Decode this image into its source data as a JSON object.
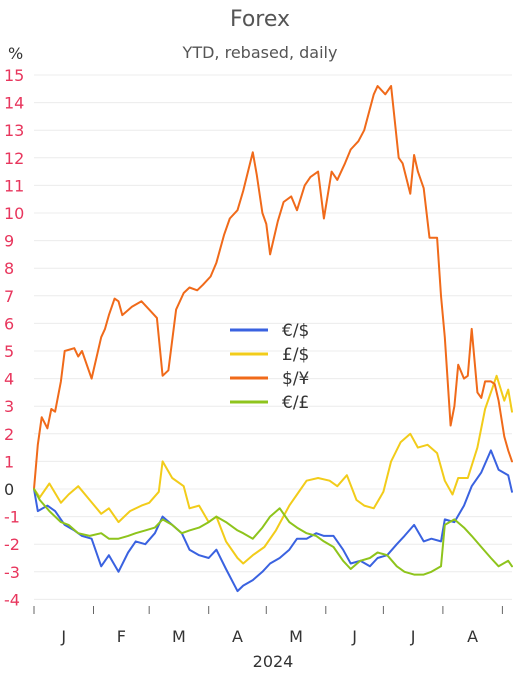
{
  "chart_data": {
    "type": "line",
    "title": "Forex",
    "subtitle": "YTD, rebased, daily",
    "unit_label": "%",
    "xlabel": "2024",
    "x_tick_labels": [
      "J",
      "F",
      "M",
      "A",
      "M",
      "J",
      "J",
      "A"
    ],
    "y_ticks": [
      15,
      14,
      13,
      12,
      11,
      10,
      9,
      8,
      7,
      6,
      5,
      4,
      3,
      2,
      1,
      0,
      -1,
      -2,
      -3,
      -4
    ],
    "ylim": [
      -4.2,
      15.2
    ],
    "xlim": [
      "2024-01-01",
      "2024-09-06"
    ],
    "grid": true,
    "legend_position": "center",
    "colors": {
      "positive_tick": "#e8365d",
      "negative_tick": "#e8365d",
      "zero_tick": "#333333",
      "grid": "#ececec"
    },
    "series": [
      {
        "name": "€/$",
        "color": "#3a62e0",
        "points": [
          [
            "2024-01-01",
            0.0
          ],
          [
            "2024-01-03",
            -0.8
          ],
          [
            "2024-01-08",
            -0.6
          ],
          [
            "2024-01-12",
            -0.8
          ],
          [
            "2024-01-17",
            -1.3
          ],
          [
            "2024-01-22",
            -1.5
          ],
          [
            "2024-01-26",
            -1.7
          ],
          [
            "2024-01-31",
            -1.8
          ],
          [
            "2024-02-05",
            -2.8
          ],
          [
            "2024-02-09",
            -2.4
          ],
          [
            "2024-02-14",
            -3.0
          ],
          [
            "2024-02-19",
            -2.3
          ],
          [
            "2024-02-23",
            -1.9
          ],
          [
            "2024-02-28",
            -2.0
          ],
          [
            "2024-03-04",
            -1.6
          ],
          [
            "2024-03-08",
            -1.0
          ],
          [
            "2024-03-13",
            -1.3
          ],
          [
            "2024-03-18",
            -1.6
          ],
          [
            "2024-03-22",
            -2.2
          ],
          [
            "2024-03-27",
            -2.4
          ],
          [
            "2024-04-01",
            -2.5
          ],
          [
            "2024-04-05",
            -2.2
          ],
          [
            "2024-04-10",
            -2.9
          ],
          [
            "2024-04-16",
            -3.7
          ],
          [
            "2024-04-19",
            -3.5
          ],
          [
            "2024-04-24",
            -3.3
          ],
          [
            "2024-04-29",
            -3.0
          ],
          [
            "2024-05-03",
            -2.7
          ],
          [
            "2024-05-08",
            -2.5
          ],
          [
            "2024-05-13",
            -2.2
          ],
          [
            "2024-05-17",
            -1.8
          ],
          [
            "2024-05-22",
            -1.8
          ],
          [
            "2024-05-27",
            -1.6
          ],
          [
            "2024-05-31",
            -1.7
          ],
          [
            "2024-06-05",
            -1.7
          ],
          [
            "2024-06-10",
            -2.2
          ],
          [
            "2024-06-14",
            -2.7
          ],
          [
            "2024-06-19",
            -2.6
          ],
          [
            "2024-06-24",
            -2.8
          ],
          [
            "2024-06-28",
            -2.5
          ],
          [
            "2024-07-03",
            -2.4
          ],
          [
            "2024-07-08",
            -2.0
          ],
          [
            "2024-07-12",
            -1.7
          ],
          [
            "2024-07-17",
            -1.3
          ],
          [
            "2024-07-22",
            -1.9
          ],
          [
            "2024-07-26",
            -1.8
          ],
          [
            "2024-07-31",
            -1.9
          ],
          [
            "2024-08-02",
            -1.1
          ],
          [
            "2024-08-07",
            -1.2
          ],
          [
            "2024-08-12",
            -0.6
          ],
          [
            "2024-08-16",
            0.1
          ],
          [
            "2024-08-21",
            0.6
          ],
          [
            "2024-08-26",
            1.4
          ],
          [
            "2024-08-30",
            0.7
          ],
          [
            "2024-09-04",
            0.5
          ],
          [
            "2024-09-06",
            -0.1
          ]
        ]
      },
      {
        "name": "£/$",
        "color": "#f2cc1a",
        "points": [
          [
            "2024-01-01",
            0.0
          ],
          [
            "2024-01-04",
            -0.3
          ],
          [
            "2024-01-09",
            0.2
          ],
          [
            "2024-01-15",
            -0.5
          ],
          [
            "2024-01-19",
            -0.2
          ],
          [
            "2024-01-24",
            0.1
          ],
          [
            "2024-01-30",
            -0.4
          ],
          [
            "2024-02-05",
            -0.9
          ],
          [
            "2024-02-09",
            -0.7
          ],
          [
            "2024-02-14",
            -1.2
          ],
          [
            "2024-02-20",
            -0.8
          ],
          [
            "2024-02-26",
            -0.6
          ],
          [
            "2024-03-01",
            -0.5
          ],
          [
            "2024-03-06",
            -0.1
          ],
          [
            "2024-03-08",
            1.0
          ],
          [
            "2024-03-13",
            0.4
          ],
          [
            "2024-03-19",
            0.1
          ],
          [
            "2024-03-22",
            -0.7
          ],
          [
            "2024-03-27",
            -0.6
          ],
          [
            "2024-04-01",
            -1.2
          ],
          [
            "2024-04-05",
            -1.0
          ],
          [
            "2024-04-10",
            -1.9
          ],
          [
            "2024-04-16",
            -2.5
          ],
          [
            "2024-04-19",
            -2.7
          ],
          [
            "2024-04-24",
            -2.4
          ],
          [
            "2024-04-30",
            -2.1
          ],
          [
            "2024-05-06",
            -1.5
          ],
          [
            "2024-05-13",
            -0.6
          ],
          [
            "2024-05-17",
            -0.2
          ],
          [
            "2024-05-22",
            0.3
          ],
          [
            "2024-05-28",
            0.4
          ],
          [
            "2024-06-03",
            0.3
          ],
          [
            "2024-06-07",
            0.1
          ],
          [
            "2024-06-12",
            0.5
          ],
          [
            "2024-06-17",
            -0.4
          ],
          [
            "2024-06-21",
            -0.6
          ],
          [
            "2024-06-26",
            -0.7
          ],
          [
            "2024-07-01",
            -0.1
          ],
          [
            "2024-07-05",
            1.0
          ],
          [
            "2024-07-10",
            1.7
          ],
          [
            "2024-07-15",
            2.0
          ],
          [
            "2024-07-19",
            1.5
          ],
          [
            "2024-07-24",
            1.6
          ],
          [
            "2024-07-29",
            1.3
          ],
          [
            "2024-08-02",
            0.3
          ],
          [
            "2024-08-06",
            -0.2
          ],
          [
            "2024-08-09",
            0.4
          ],
          [
            "2024-08-14",
            0.4
          ],
          [
            "2024-08-19",
            1.5
          ],
          [
            "2024-08-23",
            2.9
          ],
          [
            "2024-08-27",
            3.7
          ],
          [
            "2024-08-29",
            4.1
          ],
          [
            "2024-09-02",
            3.2
          ],
          [
            "2024-09-04",
            3.6
          ],
          [
            "2024-09-06",
            2.8
          ]
        ]
      },
      {
        "name": "$/¥",
        "color": "#f06a1a",
        "points": [
          [
            "2024-01-01",
            0.0
          ],
          [
            "2024-01-03",
            1.6
          ],
          [
            "2024-01-05",
            2.6
          ],
          [
            "2024-01-08",
            2.2
          ],
          [
            "2024-01-10",
            2.9
          ],
          [
            "2024-01-12",
            2.8
          ],
          [
            "2024-01-15",
            3.9
          ],
          [
            "2024-01-17",
            5.0
          ],
          [
            "2024-01-22",
            5.1
          ],
          [
            "2024-01-24",
            4.8
          ],
          [
            "2024-01-26",
            5.0
          ],
          [
            "2024-01-31",
            4.0
          ],
          [
            "2024-02-05",
            5.5
          ],
          [
            "2024-02-07",
            5.8
          ],
          [
            "2024-02-09",
            6.3
          ],
          [
            "2024-02-12",
            6.9
          ],
          [
            "2024-02-14",
            6.8
          ],
          [
            "2024-02-16",
            6.3
          ],
          [
            "2024-02-21",
            6.6
          ],
          [
            "2024-02-26",
            6.8
          ],
          [
            "2024-03-01",
            6.5
          ],
          [
            "2024-03-05",
            6.2
          ],
          [
            "2024-03-08",
            4.1
          ],
          [
            "2024-03-11",
            4.3
          ],
          [
            "2024-03-15",
            6.5
          ],
          [
            "2024-03-19",
            7.1
          ],
          [
            "2024-03-22",
            7.3
          ],
          [
            "2024-03-26",
            7.2
          ],
          [
            "2024-03-29",
            7.4
          ],
          [
            "2024-04-02",
            7.7
          ],
          [
            "2024-04-05",
            8.2
          ],
          [
            "2024-04-09",
            9.2
          ],
          [
            "2024-04-12",
            9.8
          ],
          [
            "2024-04-16",
            10.1
          ],
          [
            "2024-04-19",
            10.8
          ],
          [
            "2024-04-24",
            12.2
          ],
          [
            "2024-04-26",
            11.4
          ],
          [
            "2024-04-29",
            10.0
          ],
          [
            "2024-05-01",
            9.6
          ],
          [
            "2024-05-03",
            8.5
          ],
          [
            "2024-05-07",
            9.7
          ],
          [
            "2024-05-10",
            10.4
          ],
          [
            "2024-05-14",
            10.6
          ],
          [
            "2024-05-17",
            10.1
          ],
          [
            "2024-05-21",
            11.0
          ],
          [
            "2024-05-24",
            11.3
          ],
          [
            "2024-05-28",
            11.5
          ],
          [
            "2024-05-31",
            9.8
          ],
          [
            "2024-06-04",
            11.5
          ],
          [
            "2024-06-07",
            11.2
          ],
          [
            "2024-06-11",
            11.8
          ],
          [
            "2024-06-14",
            12.3
          ],
          [
            "2024-06-18",
            12.6
          ],
          [
            "2024-06-21",
            13.0
          ],
          [
            "2024-06-26",
            14.3
          ],
          [
            "2024-06-28",
            14.6
          ],
          [
            "2024-07-02",
            14.3
          ],
          [
            "2024-07-05",
            14.6
          ],
          [
            "2024-07-09",
            12.0
          ],
          [
            "2024-07-11",
            11.8
          ],
          [
            "2024-07-15",
            10.7
          ],
          [
            "2024-07-17",
            12.1
          ],
          [
            "2024-07-19",
            11.5
          ],
          [
            "2024-07-22",
            10.9
          ],
          [
            "2024-07-25",
            9.1
          ],
          [
            "2024-07-29",
            9.1
          ],
          [
            "2024-07-31",
            7.0
          ],
          [
            "2024-08-02",
            5.5
          ],
          [
            "2024-08-05",
            2.3
          ],
          [
            "2024-08-07",
            3.0
          ],
          [
            "2024-08-09",
            4.5
          ],
          [
            "2024-08-12",
            4.0
          ],
          [
            "2024-08-14",
            4.1
          ],
          [
            "2024-08-16",
            5.8
          ],
          [
            "2024-08-19",
            3.5
          ],
          [
            "2024-08-21",
            3.3
          ],
          [
            "2024-08-23",
            3.9
          ],
          [
            "2024-08-26",
            3.9
          ],
          [
            "2024-08-28",
            3.8
          ],
          [
            "2024-08-30",
            3.2
          ],
          [
            "2024-09-02",
            1.9
          ],
          [
            "2024-09-04",
            1.4
          ],
          [
            "2024-09-06",
            1.0
          ]
        ]
      },
      {
        "name": "€/£",
        "color": "#8ec41c",
        "points": [
          [
            "2024-01-01",
            0.0
          ],
          [
            "2024-01-04",
            -0.4
          ],
          [
            "2024-01-09",
            -0.8
          ],
          [
            "2024-01-15",
            -1.2
          ],
          [
            "2024-01-19",
            -1.3
          ],
          [
            "2024-01-24",
            -1.6
          ],
          [
            "2024-01-30",
            -1.7
          ],
          [
            "2024-02-05",
            -1.6
          ],
          [
            "2024-02-09",
            -1.8
          ],
          [
            "2024-02-14",
            -1.8
          ],
          [
            "2024-02-19",
            -1.7
          ],
          [
            "2024-02-23",
            -1.6
          ],
          [
            "2024-02-28",
            -1.5
          ],
          [
            "2024-03-04",
            -1.4
          ],
          [
            "2024-03-08",
            -1.1
          ],
          [
            "2024-03-13",
            -1.3
          ],
          [
            "2024-03-18",
            -1.6
          ],
          [
            "2024-03-22",
            -1.5
          ],
          [
            "2024-03-27",
            -1.4
          ],
          [
            "2024-04-01",
            -1.2
          ],
          [
            "2024-04-05",
            -1.0
          ],
          [
            "2024-04-10",
            -1.2
          ],
          [
            "2024-04-16",
            -1.5
          ],
          [
            "2024-04-19",
            -1.6
          ],
          [
            "2024-04-24",
            -1.8
          ],
          [
            "2024-04-29",
            -1.4
          ],
          [
            "2024-05-03",
            -1.0
          ],
          [
            "2024-05-08",
            -0.7
          ],
          [
            "2024-05-13",
            -1.2
          ],
          [
            "2024-05-17",
            -1.4
          ],
          [
            "2024-05-22",
            -1.6
          ],
          [
            "2024-05-27",
            -1.7
          ],
          [
            "2024-05-31",
            -1.9
          ],
          [
            "2024-06-05",
            -2.1
          ],
          [
            "2024-06-10",
            -2.6
          ],
          [
            "2024-06-14",
            -2.9
          ],
          [
            "2024-06-19",
            -2.6
          ],
          [
            "2024-06-24",
            -2.5
          ],
          [
            "2024-06-28",
            -2.3
          ],
          [
            "2024-07-03",
            -2.4
          ],
          [
            "2024-07-08",
            -2.8
          ],
          [
            "2024-07-12",
            -3.0
          ],
          [
            "2024-07-17",
            -3.1
          ],
          [
            "2024-07-22",
            -3.1
          ],
          [
            "2024-07-26",
            -3.0
          ],
          [
            "2024-07-31",
            -2.8
          ],
          [
            "2024-08-02",
            -1.3
          ],
          [
            "2024-08-07",
            -1.1
          ],
          [
            "2024-08-12",
            -1.4
          ],
          [
            "2024-08-16",
            -1.7
          ],
          [
            "2024-08-21",
            -2.1
          ],
          [
            "2024-08-26",
            -2.5
          ],
          [
            "2024-08-30",
            -2.8
          ],
          [
            "2024-09-04",
            -2.6
          ],
          [
            "2024-09-06",
            -2.8
          ]
        ]
      }
    ]
  }
}
